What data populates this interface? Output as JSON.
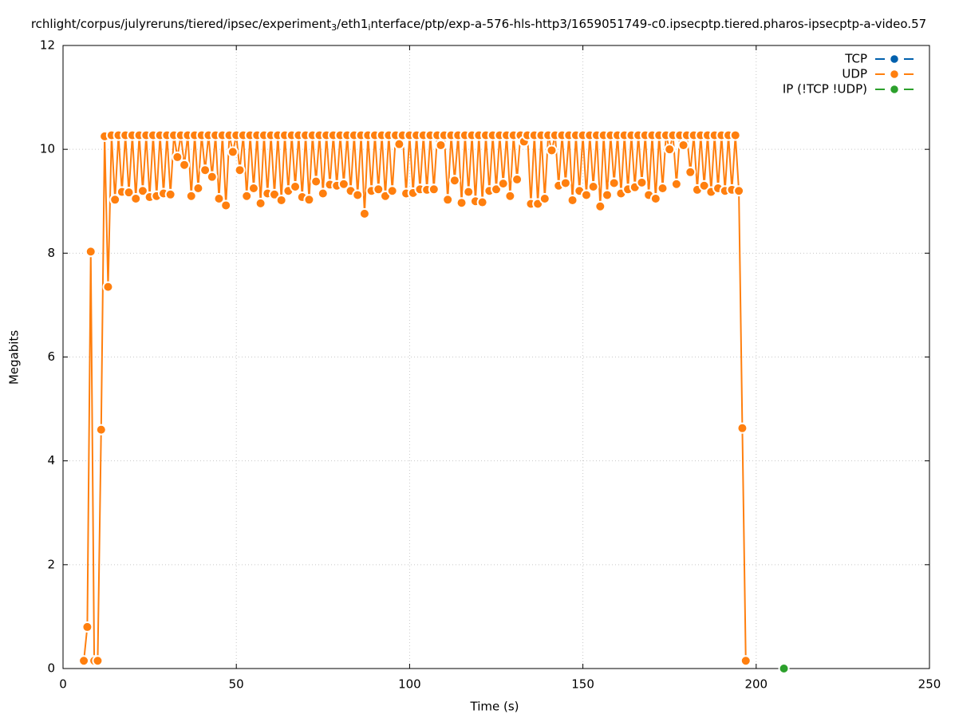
{
  "chart_data": {
    "type": "line",
    "title": [
      {
        "text": "rchlight/corpus/julyreruns/tiered/ipsec/experiment"
      },
      {
        "text": "3",
        "subscript": true
      },
      {
        "text": "/eth1"
      },
      {
        "text": "i",
        "subscript": true
      },
      {
        "text": "nterface/ptp/exp-a-576-hls-http3/1659051749-c0.ipsecptp.tiered.pharos-ipsecptp-a-video.57"
      }
    ],
    "xlabel": "Time (s)",
    "ylabel": "Megabits",
    "xlim": [
      0,
      250
    ],
    "ylim": [
      0,
      12
    ],
    "xticks": [
      0,
      50,
      100,
      150,
      200,
      250
    ],
    "yticks": [
      0,
      2,
      4,
      6,
      8,
      10,
      12
    ],
    "grid": true,
    "legend": "top-right",
    "series": [
      {
        "name": "TCP",
        "color": "#0060ad",
        "x": [],
        "values": []
      },
      {
        "name": "UDP",
        "color": "#ff7f0e",
        "x": [
          6,
          7,
          8,
          9,
          10,
          11,
          12,
          13,
          14,
          15,
          16,
          17,
          18,
          19,
          20,
          21,
          22,
          23,
          24,
          25,
          26,
          27,
          28,
          29,
          30,
          31,
          32,
          33,
          34,
          35,
          36,
          37,
          38,
          39,
          40,
          41,
          42,
          43,
          44,
          45,
          46,
          47,
          48,
          49,
          50,
          51,
          52,
          53,
          54,
          55,
          56,
          57,
          58,
          59,
          60,
          61,
          62,
          63,
          64,
          65,
          66,
          67,
          68,
          69,
          70,
          71,
          72,
          73,
          74,
          75,
          76,
          77,
          78,
          79,
          80,
          81,
          82,
          83,
          84,
          85,
          86,
          87,
          88,
          89,
          90,
          91,
          92,
          93,
          94,
          95,
          96,
          97,
          98,
          99,
          100,
          101,
          102,
          103,
          104,
          105,
          106,
          107,
          108,
          109,
          110,
          111,
          112,
          113,
          114,
          115,
          116,
          117,
          118,
          119,
          120,
          121,
          122,
          123,
          124,
          125,
          126,
          127,
          128,
          129,
          130,
          131,
          132,
          133,
          134,
          135,
          136,
          137,
          138,
          139,
          140,
          141,
          142,
          143,
          144,
          145,
          146,
          147,
          148,
          149,
          150,
          151,
          152,
          153,
          154,
          155,
          156,
          157,
          158,
          159,
          160,
          161,
          162,
          163,
          164,
          165,
          166,
          167,
          168,
          169,
          170,
          171,
          172,
          173,
          174,
          175,
          176,
          177,
          178,
          179,
          180,
          181,
          182,
          183,
          184,
          185,
          186,
          187,
          188,
          189,
          190,
          191,
          192,
          193,
          194,
          195,
          196,
          197
        ],
        "values": [
          0.15,
          0.8,
          8.03,
          0.15,
          0.15,
          4.6,
          10.25,
          7.35,
          10.27,
          9.03,
          10.27,
          9.18,
          10.27,
          9.17,
          10.27,
          9.05,
          10.27,
          9.2,
          10.27,
          9.08,
          10.27,
          9.1,
          10.27,
          9.15,
          10.27,
          9.13,
          10.27,
          9.85,
          10.27,
          9.7,
          10.27,
          9.1,
          10.27,
          9.25,
          10.27,
          9.6,
          10.27,
          9.47,
          10.27,
          9.05,
          10.27,
          8.92,
          10.27,
          9.95,
          10.27,
          9.6,
          10.27,
          9.1,
          10.27,
          9.25,
          10.27,
          8.96,
          10.27,
          9.15,
          10.27,
          9.13,
          10.27,
          9.02,
          10.27,
          9.2,
          10.27,
          9.28,
          10.27,
          9.08,
          10.27,
          9.03,
          10.27,
          9.38,
          10.27,
          9.15,
          10.27,
          9.32,
          10.27,
          9.3,
          10.27,
          9.33,
          10.27,
          9.2,
          10.27,
          9.12,
          10.27,
          8.76,
          10.27,
          9.2,
          10.27,
          9.23,
          10.27,
          9.1,
          10.27,
          9.2,
          10.27,
          10.1,
          10.27,
          9.15,
          10.27,
          9.16,
          10.27,
          9.23,
          10.27,
          9.22,
          10.27,
          9.23,
          10.27,
          10.08,
          10.27,
          9.03,
          10.27,
          9.4,
          10.27,
          8.97,
          10.27,
          9.18,
          10.27,
          9.0,
          10.27,
          8.98,
          10.27,
          9.2,
          10.27,
          9.23,
          10.27,
          9.34,
          10.27,
          9.1,
          10.27,
          9.42,
          10.27,
          10.15,
          10.27,
          8.95,
          10.27,
          8.95,
          10.27,
          9.05,
          10.27,
          9.98,
          10.27,
          9.3,
          10.27,
          9.35,
          10.27,
          9.02,
          10.27,
          9.2,
          10.27,
          9.12,
          10.27,
          9.28,
          10.27,
          8.9,
          10.27,
          9.12,
          10.27,
          9.35,
          10.27,
          9.15,
          10.27,
          9.23,
          10.27,
          9.27,
          10.27,
          9.36,
          10.27,
          9.12,
          10.27,
          9.05,
          10.27,
          9.25,
          10.27,
          10.0,
          10.27,
          9.33,
          10.27,
          10.08,
          10.27,
          9.56,
          10.27,
          9.22,
          10.27,
          9.3,
          10.27,
          9.18,
          10.27,
          9.25,
          10.27,
          9.2,
          10.27,
          9.22,
          10.27,
          9.2,
          4.63,
          0.15
        ]
      },
      {
        "name": "IP (!TCP  !UDP)",
        "color": "#2ca02c",
        "x": [
          208
        ],
        "values": [
          0
        ]
      }
    ]
  }
}
